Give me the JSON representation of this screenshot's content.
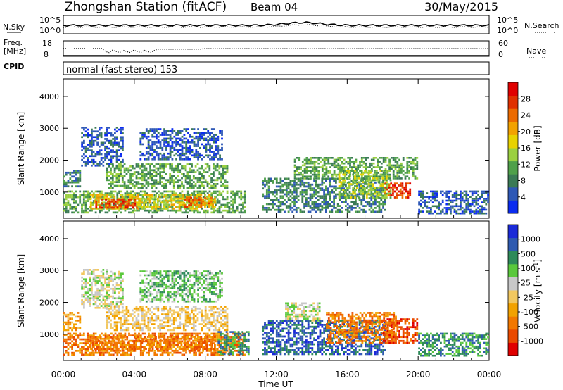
{
  "header": {
    "title": "Zhongshan Station (fitACF)",
    "beam": "Beam 04",
    "date": "30/May/2015"
  },
  "top_panels": {
    "nsky_label": "N.Sky",
    "nsearch_label": "N.Search",
    "noise_ticks_left": [
      "10^5",
      "10^0"
    ],
    "noise_ticks_right": [
      "10^5",
      "10^0"
    ],
    "freq_label_1": "Freq.",
    "freq_label_2": "[MHz]",
    "freq_ticks": [
      "18",
      "8"
    ],
    "nave_label": "Nave",
    "nave_ticks": [
      "60",
      "0"
    ],
    "cpid_label": "CPID",
    "cpid_text": "normal (fast stereo) 153"
  },
  "chart_data": [
    {
      "type": "heatmap",
      "panel": "power",
      "ylabel": "Slant Range [km]",
      "yticks": [
        1000,
        2000,
        3000,
        4000
      ],
      "ylim": [
        180,
        4550
      ],
      "x_ticks": [
        "00:00",
        "04:00",
        "08:00",
        "12:00",
        "16:00",
        "20:00",
        "00:00"
      ],
      "x_range_hours": [
        0,
        24
      ],
      "colorbar": {
        "label": "Power [dB]",
        "ticks": [
          4,
          8,
          12,
          16,
          20,
          24,
          28
        ],
        "range": [
          0,
          32
        ],
        "colors": [
          "#0a2bf0",
          "#2e58b6",
          "#3a7a55",
          "#4fa04a",
          "#9bd040",
          "#e8d200",
          "#f2a200",
          "#ec6a00",
          "#e03000",
          "#e00000"
        ]
      },
      "regions": [
        {
          "t": [
            1.0,
            3.4
          ],
          "r": [
            1800,
            3050
          ],
          "level": 1
        },
        {
          "t": [
            0.0,
            1.0
          ],
          "r": [
            1150,
            1700
          ],
          "level": 2
        },
        {
          "t": [
            0.0,
            10.3
          ],
          "r": [
            330,
            1050
          ],
          "level": 3
        },
        {
          "t": [
            1.5,
            8.6
          ],
          "r": [
            450,
            950
          ],
          "level": 5
        },
        {
          "t": [
            1.8,
            4.2
          ],
          "r": [
            480,
            800
          ],
          "level": 8
        },
        {
          "t": [
            6.8,
            8.4
          ],
          "r": [
            500,
            850
          ],
          "level": 7
        },
        {
          "t": [
            2.4,
            9.3
          ],
          "r": [
            1100,
            1900
          ],
          "level": 3
        },
        {
          "t": [
            4.3,
            9.0
          ],
          "r": [
            2000,
            3000
          ],
          "level": 1
        },
        {
          "t": [
            11.2,
            18.2
          ],
          "r": [
            350,
            1450
          ],
          "level": 2
        },
        {
          "t": [
            13.0,
            20.0
          ],
          "r": [
            1400,
            2100
          ],
          "level": 3
        },
        {
          "t": [
            15.5,
            18.5
          ],
          "r": [
            800,
            1700
          ],
          "level": 4
        },
        {
          "t": [
            18.1,
            19.6
          ],
          "r": [
            800,
            1300
          ],
          "level": 8
        },
        {
          "t": [
            20.0,
            24.0
          ],
          "r": [
            300,
            1050
          ],
          "level": 1
        }
      ]
    },
    {
      "type": "heatmap",
      "panel": "velocity",
      "ylabel": "Slant Range [km]",
      "yticks": [
        1000,
        2000,
        3000,
        4000
      ],
      "ylim": [
        180,
        4550
      ],
      "x_ticks": [
        "00:00",
        "04:00",
        "08:00",
        "12:00",
        "16:00",
        "20:00",
        "00:00"
      ],
      "x_range_hours": [
        0,
        24
      ],
      "xlabel": "Time UT",
      "colorbar": {
        "label": "Velocity [m s^-1]",
        "ticks": [
          "-1000",
          "-500",
          "-100",
          "-25",
          "25",
          "100",
          "500",
          "1000"
        ],
        "colors": [
          "#e00000",
          "#ea4a00",
          "#f27800",
          "#f2a200",
          "#f2c860",
          "#c8c8c8",
          "#5ac83c",
          "#2e8a5a",
          "#2e5ab0",
          "#1a2ad8"
        ]
      },
      "regions": [
        {
          "t": [
            1.0,
            3.4
          ],
          "r": [
            1800,
            3050
          ],
          "level": 5
        },
        {
          "t": [
            0.0,
            1.0
          ],
          "r": [
            1100,
            1700
          ],
          "level": 3
        },
        {
          "t": [
            0.0,
            10.3
          ],
          "r": [
            330,
            1050
          ],
          "level": 2
        },
        {
          "t": [
            1.5,
            8.6
          ],
          "r": [
            450,
            950
          ],
          "level": 2
        },
        {
          "t": [
            2.4,
            9.3
          ],
          "r": [
            1100,
            1900
          ],
          "level": 4
        },
        {
          "t": [
            4.3,
            9.0
          ],
          "r": [
            2000,
            3000
          ],
          "level": 6
        },
        {
          "t": [
            8.7,
            10.5
          ],
          "r": [
            350,
            1100
          ],
          "level": 7
        },
        {
          "t": [
            12.5,
            14.5
          ],
          "r": [
            1400,
            2000
          ],
          "level": 5
        },
        {
          "t": [
            11.2,
            18.2
          ],
          "r": [
            350,
            1450
          ],
          "level": 8
        },
        {
          "t": [
            14.8,
            18.8
          ],
          "r": [
            700,
            1700
          ],
          "level": 2
        },
        {
          "t": [
            18.0,
            20.0
          ],
          "r": [
            700,
            1500
          ],
          "level": 1
        },
        {
          "t": [
            20.0,
            24.0
          ],
          "r": [
            300,
            1050
          ],
          "level": 7
        }
      ]
    }
  ]
}
